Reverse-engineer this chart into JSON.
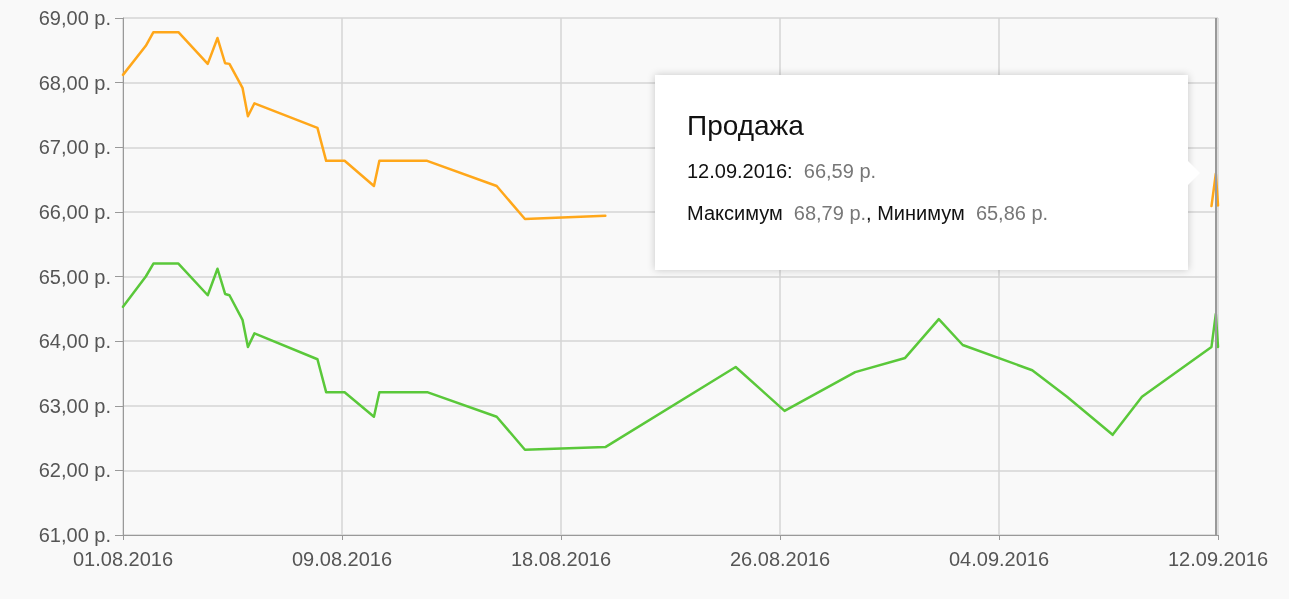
{
  "chart_data": {
    "type": "line",
    "x": [
      "2016-08-01T00:00",
      "2016-08-01T21:00",
      "2016-08-02T04:00",
      "2016-08-03T03:00",
      "2016-08-04T06:00",
      "2016-08-04T15:00",
      "2016-08-04T22:00",
      "2016-08-05T02:00",
      "2016-08-05T14:00",
      "2016-08-05T19:00",
      "2016-08-06T01:00",
      "2016-08-08T11:00",
      "2016-08-08T19:00",
      "2016-08-09T12:00",
      "2016-08-10T15:00",
      "2016-08-10T20:00",
      "2016-08-12T16:00",
      "2016-08-15T08:00",
      "2016-08-16T10:00",
      "2016-08-19T12:00",
      "2016-08-24T12:00",
      "2016-08-26T09:00",
      "2016-08-29T02:00",
      "2016-08-31T00:00",
      "2016-09-01T07:00",
      "2016-09-02T05:00",
      "2016-09-04T21:00",
      "2016-09-06T05:00",
      "2016-09-07T23:00",
      "2016-09-09T02:00",
      "2016-09-11T18:00",
      "2016-09-11T22:00",
      "2016-09-12T00:00"
    ],
    "series": [
      {
        "color": "#ffa71a",
        "values": [
          68.12,
          68.57,
          68.78,
          68.78,
          68.29,
          68.69,
          68.3,
          68.29,
          67.92,
          67.48,
          67.68,
          67.3,
          66.79,
          66.79,
          66.4,
          66.79,
          66.79,
          66.4,
          65.89,
          65.94,
          null,
          null,
          null,
          null,
          null,
          null,
          null,
          null,
          null,
          null,
          66.09,
          66.59,
          66.1
        ]
      },
      {
        "color": "#5ac83a",
        "values": [
          64.53,
          65.0,
          65.2,
          65.2,
          64.71,
          65.12,
          64.73,
          64.71,
          64.33,
          63.91,
          64.12,
          63.72,
          63.21,
          63.21,
          62.83,
          63.21,
          63.21,
          62.83,
          62.32,
          62.36,
          63.6,
          62.92,
          63.52,
          63.74,
          64.34,
          63.94,
          63.55,
          63.14,
          62.55,
          63.14,
          63.91,
          64.42,
          63.91
        ]
      }
    ],
    "xlim": [
      "2016-08-01T00:00",
      "2016-09-12T00:00"
    ],
    "xticks": [
      {
        "value": "2016-08-01T00:00",
        "label": "01.08.2016"
      },
      {
        "value": "2016-08-09T09:36",
        "label": "09.08.2016"
      },
      {
        "value": "2016-08-17T19:12",
        "label": "18.08.2016"
      },
      {
        "value": "2016-08-26T04:48",
        "label": "26.08.2016"
      },
      {
        "value": "2016-09-03T14:24",
        "label": "04.09.2016"
      },
      {
        "value": "2016-09-12T00:00",
        "label": "12.09.2016"
      }
    ],
    "ylim": [
      61,
      69
    ],
    "yticks": [
      {
        "value": 61,
        "label": "61,00 р."
      },
      {
        "value": 62,
        "label": "62,00 р."
      },
      {
        "value": 63,
        "label": "63,00 р."
      },
      {
        "value": 64,
        "label": "64,00 р."
      },
      {
        "value": 65,
        "label": "65,00 р."
      },
      {
        "value": 66,
        "label": "66,00 р."
      },
      {
        "value": 67,
        "label": "67,00 р."
      },
      {
        "value": 68,
        "label": "68,00 р."
      },
      {
        "value": 69,
        "label": "69,00 р."
      }
    ],
    "grid": true,
    "marker": "none",
    "line_style": "solid",
    "ref_lines": [
      {
        "axis": "x",
        "value": "2016-09-11T22:00",
        "color": "#999999"
      }
    ],
    "annotations": [
      "Продажа",
      "12.09.2016:",
      "66,59 р.",
      "Максимум",
      "68,79 р.",
      ", Минимум",
      "65,86 р."
    ]
  }
}
